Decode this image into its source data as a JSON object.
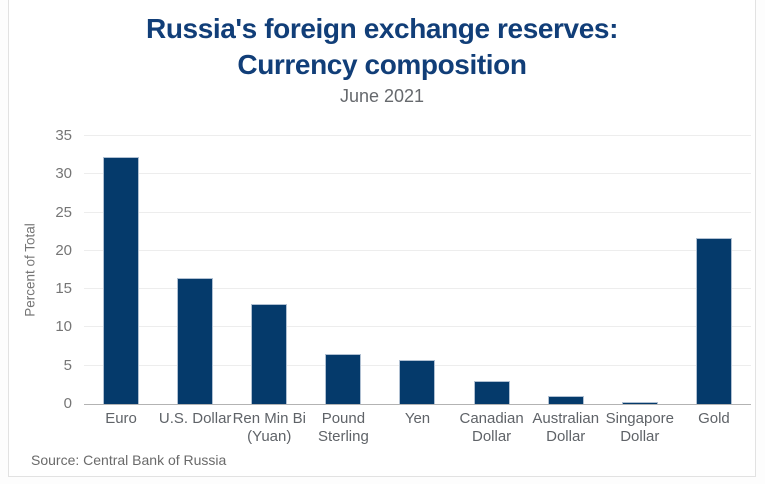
{
  "title": {
    "line1": "Russia's foreign exchange reserves:",
    "line2": "Currency composition",
    "subtitle": "June 2021"
  },
  "source": {
    "text": "Source: Central Bank of Russia"
  },
  "colors": {
    "title": "#113e78",
    "bar": "#053a6b",
    "bar_border": "#b0c0d2",
    "subtitle": "#66696d",
    "axis_text": "#757575",
    "x_label_text": "#5f6368",
    "source_text": "#6a6a6a",
    "gridline": "#ededed",
    "baseline": "#b3b3b3",
    "card_border": "#e2e2e2"
  },
  "chart_data": {
    "type": "bar",
    "title": "Russia's foreign exchange reserves: Currency composition",
    "subtitle": "June 2021",
    "xlabel": "",
    "ylabel": "Percent of Total",
    "ylim": [
      0,
      35
    ],
    "ytick_step": 5,
    "grid": true,
    "legend": "none",
    "bar_color": "#053a6b",
    "categories": [
      "Euro",
      "U.S. Dollar",
      "Ren Min Bi (Yuan)",
      "Pound Sterling",
      "Yen",
      "Canadian Dollar",
      "Australian Dollar",
      "Singapore Dollar",
      "Gold"
    ],
    "category_label_lines": [
      [
        "Euro"
      ],
      [
        "U.S. Dollar"
      ],
      [
        "Ren Min Bi",
        "(Yuan)"
      ],
      [
        "Pound",
        "Sterling"
      ],
      [
        "Yen"
      ],
      [
        "Canadian",
        "Dollar"
      ],
      [
        "Australian",
        "Dollar"
      ],
      [
        "Singapore",
        "Dollar"
      ],
      [
        "Gold"
      ]
    ],
    "values": [
      32.3,
      16.4,
      13.1,
      6.5,
      5.7,
      3.0,
      1.0,
      0.3,
      21.7
    ]
  }
}
